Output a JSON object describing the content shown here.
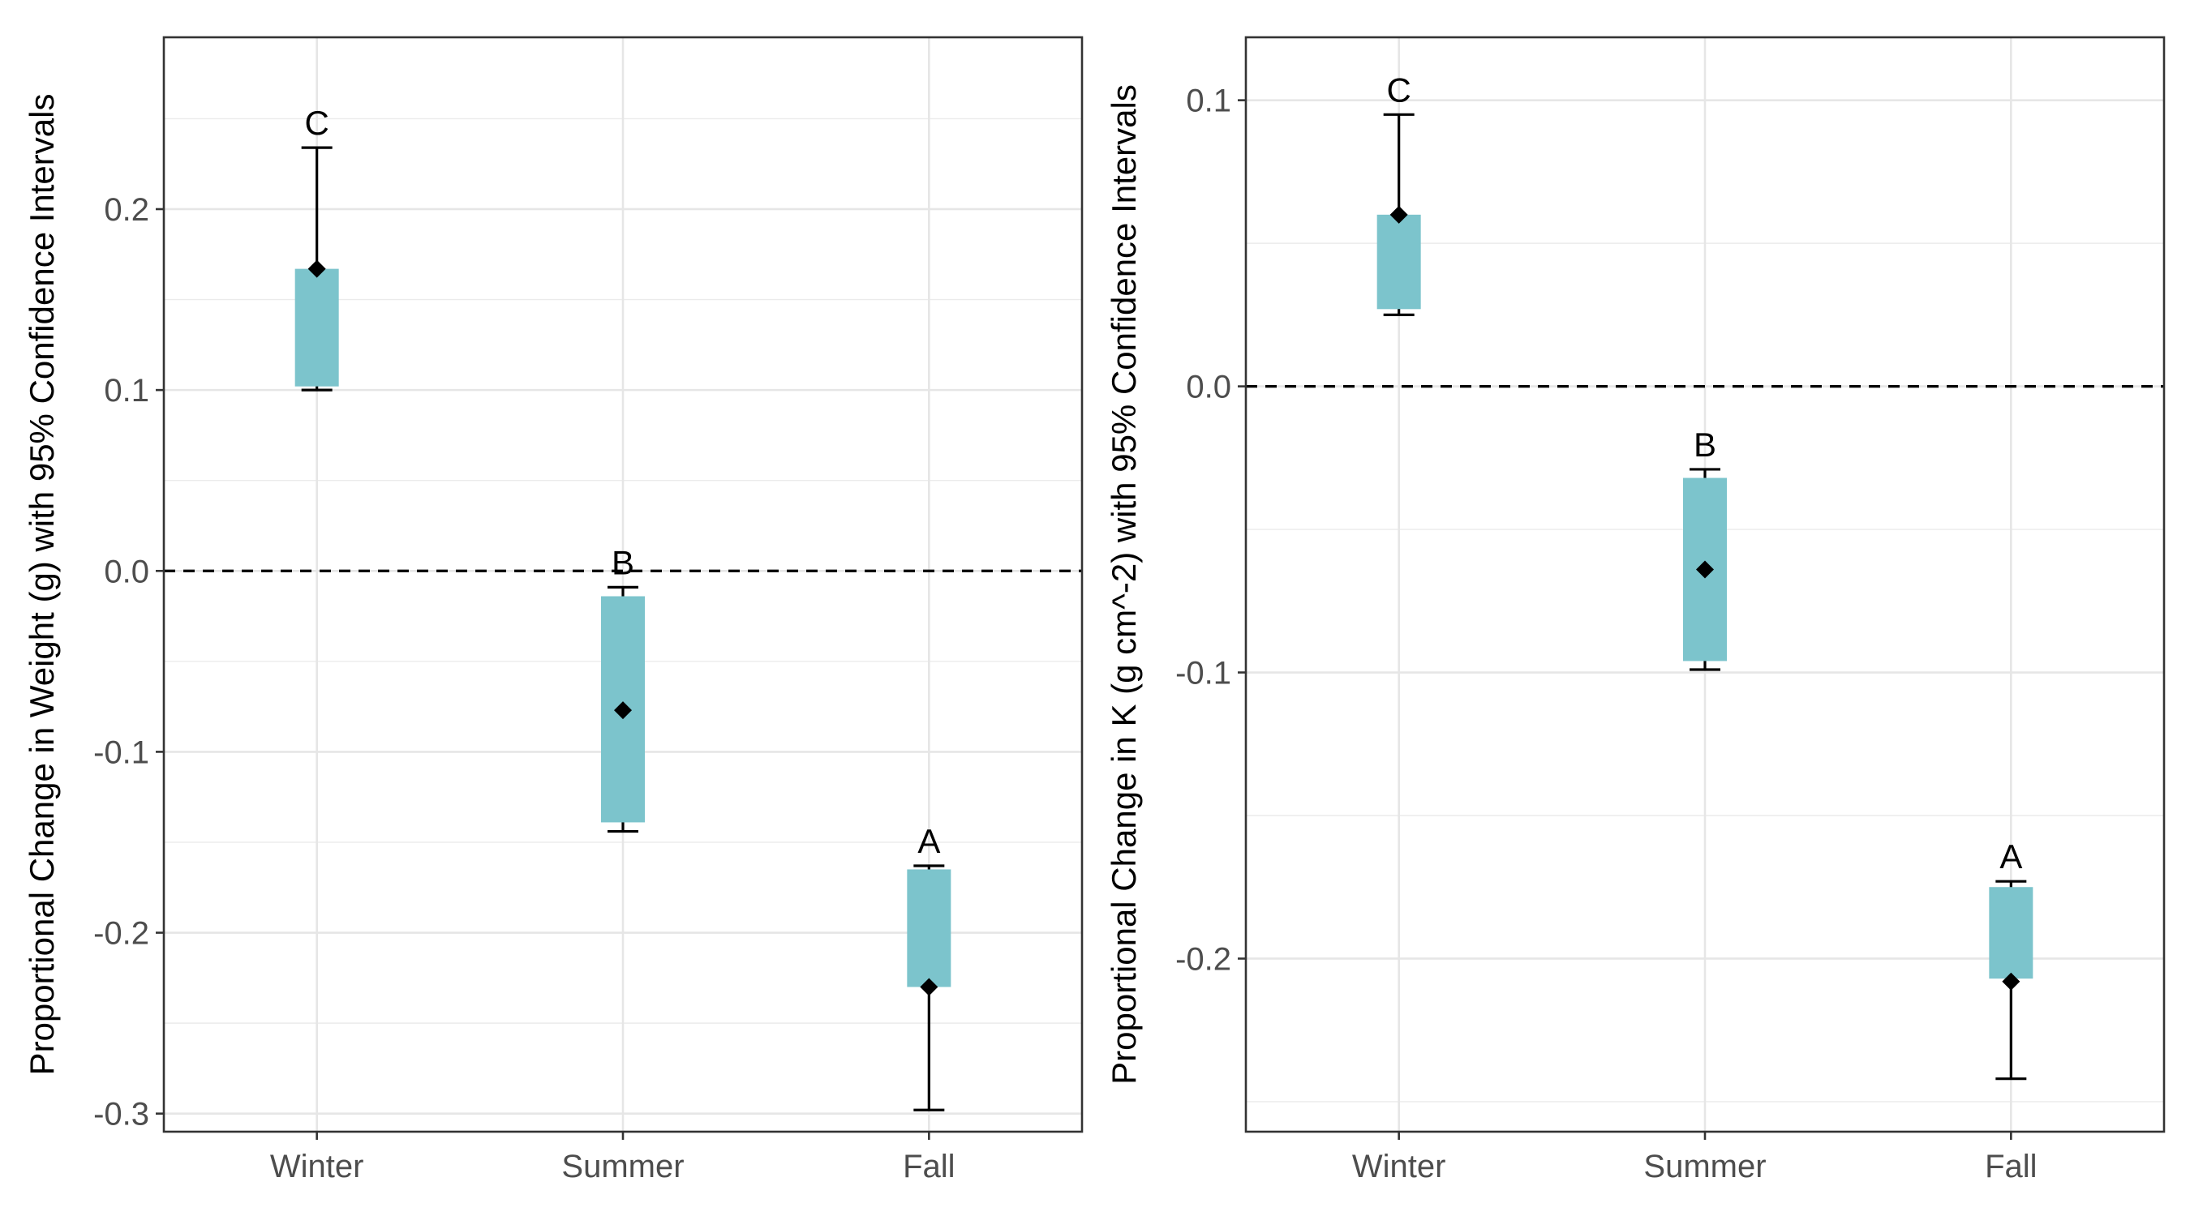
{
  "chart_data": [
    {
      "type": "box",
      "title": "",
      "xlabel": "",
      "ylabel": "Proportional Change in Weight (g) with 95% Confidence Intervals",
      "categories": [
        "Winter",
        "Summer",
        "Fall"
      ],
      "ylim": [
        -0.31,
        0.295
      ],
      "yticks": [
        0.2,
        0.1,
        0.0,
        -0.1,
        -0.2,
        -0.3
      ],
      "ytick_labels": [
        "0.2",
        "0.1",
        "0.0",
        "-0.1",
        "-0.2",
        "-0.3"
      ],
      "reference_line": 0.0,
      "grid": true,
      "legend": "none",
      "box_color": "#7cc4cc",
      "series": [
        {
          "category": "Winter",
          "ci_low": 0.1,
          "q_low": 0.102,
          "q_high": 0.167,
          "ci_high": 0.234,
          "point": 0.167,
          "letter": "C"
        },
        {
          "category": "Summer",
          "ci_low": -0.144,
          "q_low": -0.139,
          "q_high": -0.014,
          "ci_high": -0.009,
          "point": -0.077,
          "letter": "B"
        },
        {
          "category": "Fall",
          "ci_low": -0.298,
          "q_low": -0.23,
          "q_high": -0.165,
          "ci_high": -0.163,
          "point": -0.23,
          "letter": "A"
        }
      ]
    },
    {
      "type": "box",
      "title": "",
      "xlabel": "",
      "ylabel": "Proportional Change in K (g cm^-2) with 95% Confidence Intervals",
      "categories": [
        "Winter",
        "Summer",
        "Fall"
      ],
      "ylim": [
        -0.2605,
        0.122
      ],
      "yticks": [
        0.1,
        0.0,
        -0.1,
        -0.2
      ],
      "ytick_labels": [
        "0.1",
        "0.0",
        "-0.1",
        "-0.2"
      ],
      "reference_line": 0.0,
      "grid": true,
      "legend": "none",
      "box_color": "#7cc4cc",
      "series": [
        {
          "category": "Winter",
          "ci_low": 0.025,
          "q_low": 0.027,
          "q_high": 0.06,
          "ci_high": 0.095,
          "point": 0.06,
          "letter": "C"
        },
        {
          "category": "Summer",
          "ci_low": -0.099,
          "q_low": -0.096,
          "q_high": -0.032,
          "ci_high": -0.029,
          "point": -0.064,
          "letter": "B"
        },
        {
          "category": "Fall",
          "ci_low": -0.242,
          "q_low": -0.207,
          "q_high": -0.175,
          "ci_high": -0.173,
          "point": -0.208,
          "letter": "A"
        }
      ]
    }
  ]
}
